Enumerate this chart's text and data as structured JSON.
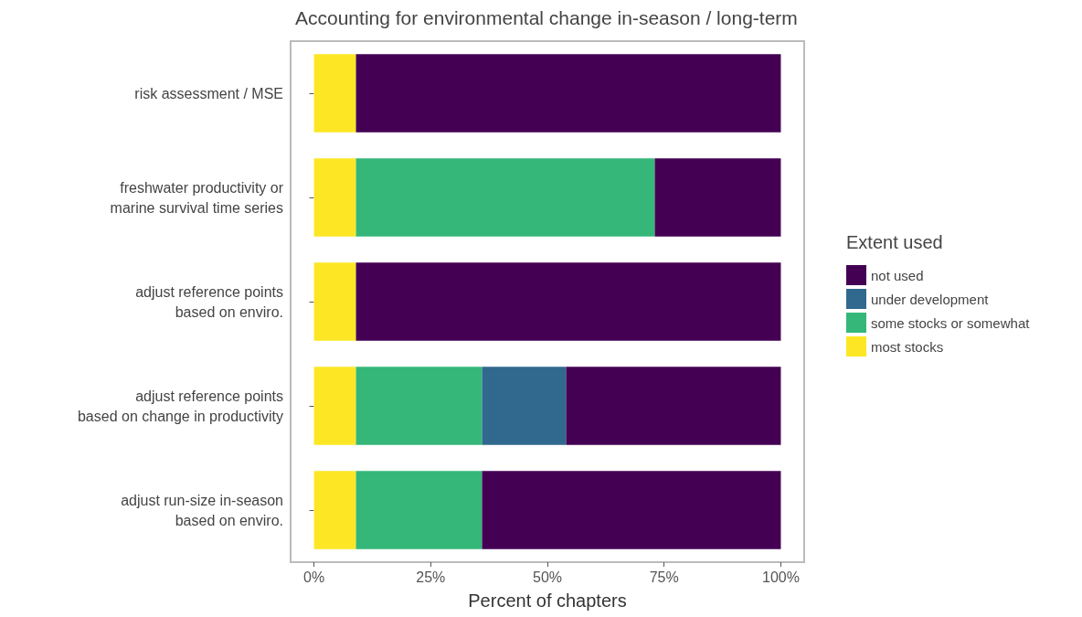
{
  "chart_data": {
    "type": "bar",
    "orientation": "horizontal",
    "stacked": true,
    "title": "Accounting for environmental change in-season / long-term",
    "xlabel": "Percent of chapters",
    "legend_title": "Extent used",
    "legend": "right",
    "grid": false,
    "categories": [
      "risk assessment / MSE",
      "freshwater productivity or\nmarine survival time series",
      "adjust reference points\nbased on enviro.",
      "adjust reference points\nbased on change in productivity",
      "adjust run-size in-season\nbased on enviro."
    ],
    "series": [
      {
        "name": "most stocks",
        "color": "#fde725",
        "values": [
          9,
          9,
          9,
          9,
          9
        ]
      },
      {
        "name": "some stocks or somewhat",
        "color": "#35b779",
        "values": [
          0,
          64,
          0,
          27,
          27
        ]
      },
      {
        "name": "under development",
        "color": "#31688e",
        "values": [
          0,
          0,
          0,
          18,
          0
        ]
      },
      {
        "name": "not used",
        "color": "#440154",
        "values": [
          91,
          27,
          91,
          46,
          64
        ]
      }
    ],
    "xlim": [
      -5,
      105
    ],
    "xticks": [
      {
        "value": 0,
        "label": "0%"
      },
      {
        "value": 25,
        "label": "25%"
      },
      {
        "value": 50,
        "label": "50%"
      },
      {
        "value": 75,
        "label": "75%"
      },
      {
        "value": 100,
        "label": "100%"
      }
    ]
  }
}
